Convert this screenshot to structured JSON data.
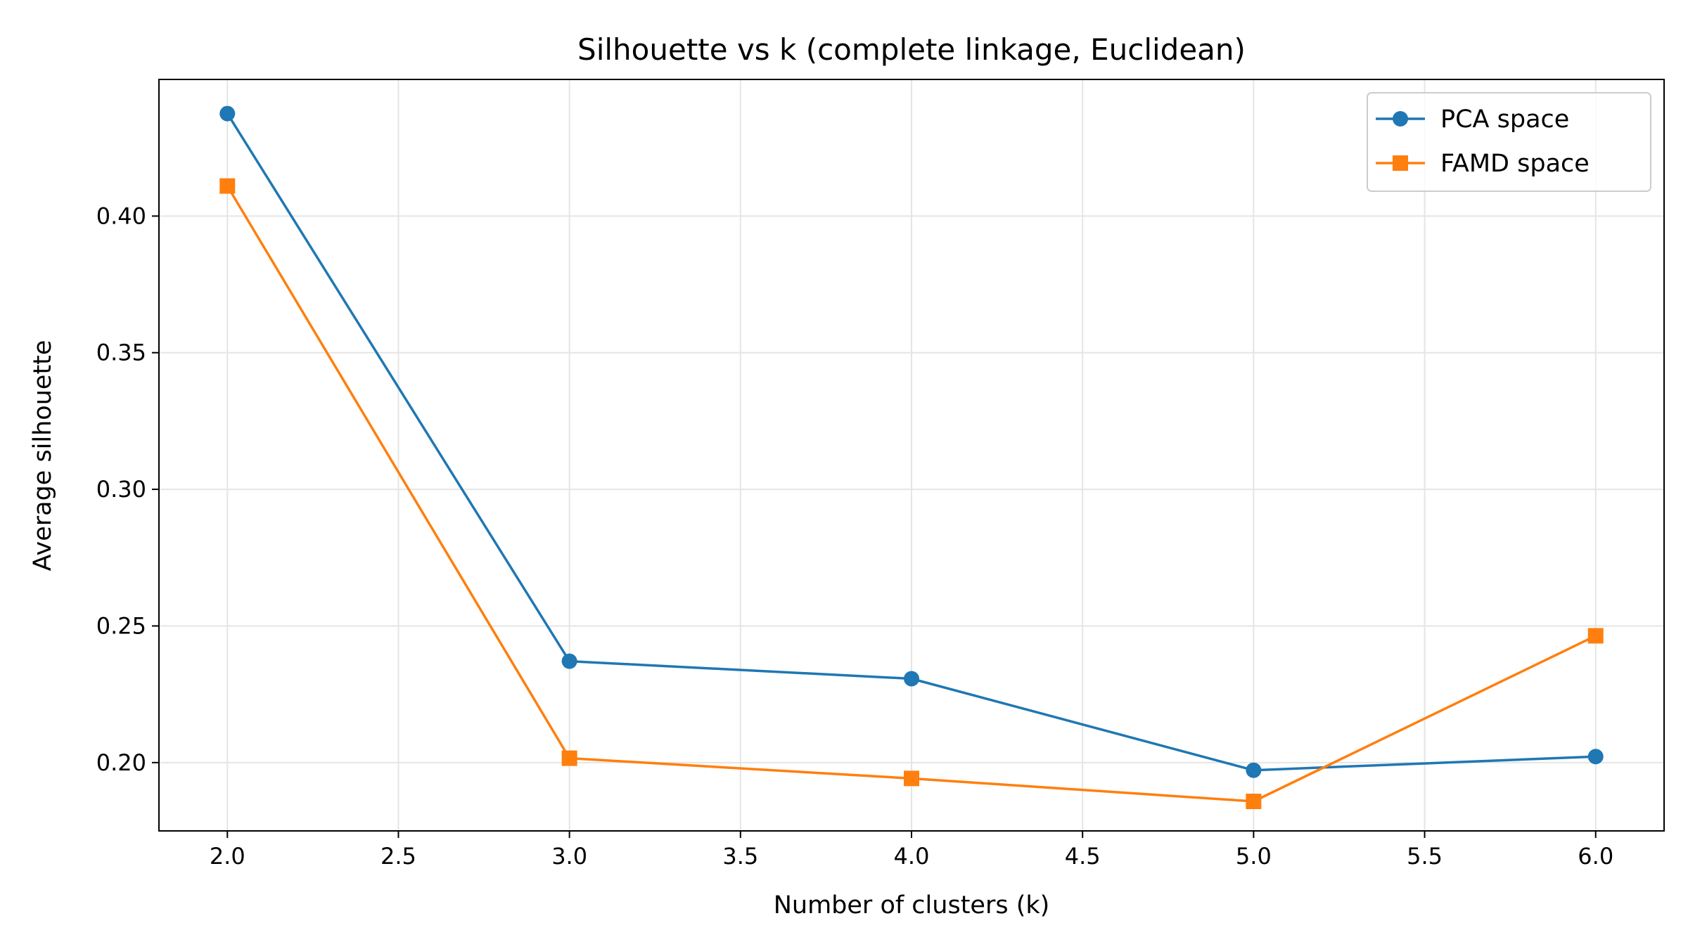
{
  "chart_data": {
    "type": "line",
    "title": "Silhouette vs k (complete linkage, Euclidean)",
    "xlabel": "Number of clusters (k)",
    "ylabel": "Average silhouette",
    "x": [
      2,
      3,
      4,
      5,
      6
    ],
    "xlim": [
      1.8,
      6.2
    ],
    "ylim": [
      0.175,
      0.45
    ],
    "xticks": [
      2.0,
      2.5,
      3.0,
      3.5,
      4.0,
      4.5,
      5.0,
      5.5,
      6.0
    ],
    "xtick_labels": [
      "2.0",
      "2.5",
      "3.0",
      "3.5",
      "4.0",
      "4.5",
      "5.0",
      "5.5",
      "6.0"
    ],
    "yticks": [
      0.2,
      0.25,
      0.3,
      0.35,
      0.4
    ],
    "ytick_labels": [
      "0.20",
      "0.25",
      "0.30",
      "0.35",
      "0.40"
    ],
    "grid": true,
    "legend_position": "top-right",
    "series": [
      {
        "name": "PCA space",
        "marker": "circle",
        "color": "#1f77b4",
        "values": [
          0.4375,
          0.2371,
          0.2307,
          0.1972,
          0.2022
        ]
      },
      {
        "name": "FAMD space",
        "marker": "square",
        "color": "#ff7f0e",
        "values": [
          0.411,
          0.2016,
          0.1942,
          0.1858,
          0.2464
        ]
      }
    ]
  }
}
